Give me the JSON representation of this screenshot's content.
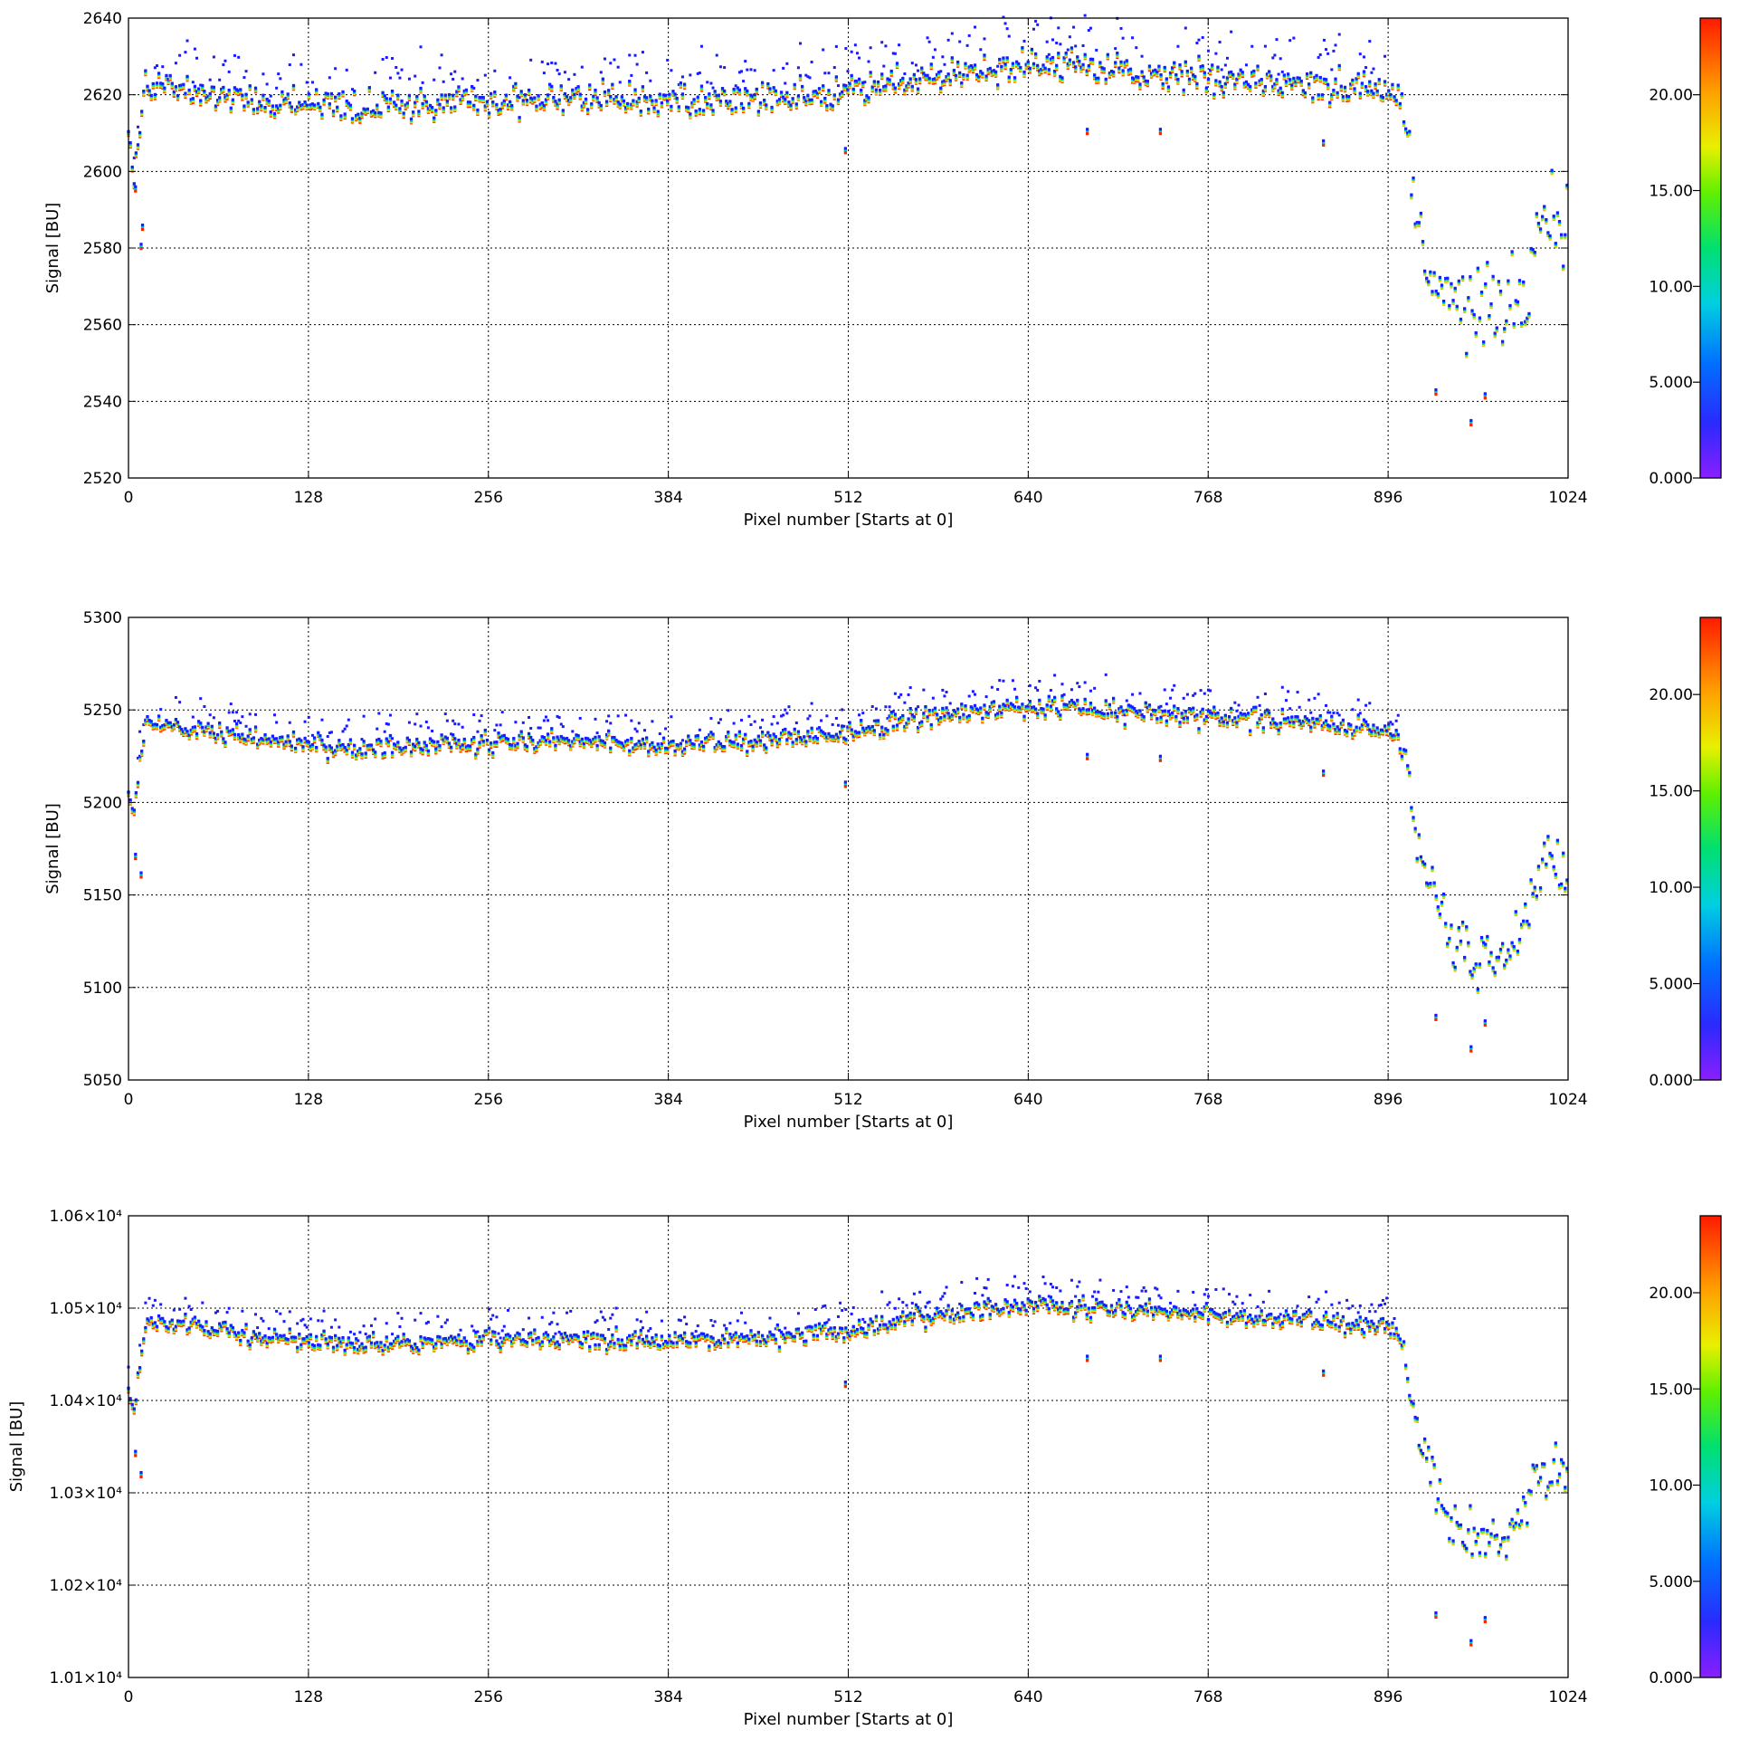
{
  "chart_data": [
    {
      "type": "scatter",
      "title": "",
      "xlabel": "Pixel number [Starts at 0]",
      "ylabel": "Signal [BU]",
      "xlim": [
        0,
        1024
      ],
      "ylim": [
        2520,
        2640
      ],
      "grid": true,
      "x_ticks": [
        "0",
        "128",
        "256",
        "384",
        "512",
        "640",
        "768",
        "896",
        "1024"
      ],
      "x_tick_values": [
        0,
        128,
        256,
        384,
        512,
        640,
        768,
        896,
        1024
      ],
      "y_ticks": [
        "2520",
        "2540",
        "2560",
        "2580",
        "2600",
        "2620",
        "2640"
      ],
      "y_tick_values": [
        2520,
        2540,
        2560,
        2580,
        2600,
        2620,
        2640
      ],
      "colorbar": {
        "range": [
          0,
          24
        ],
        "ticks": [
          "0.000",
          "5.000",
          "10.00",
          "15.00",
          "20.00"
        ],
        "tick_values": [
          0,
          5,
          10,
          15,
          20
        ],
        "colormap": "rainbow"
      },
      "baseline_profile": [
        [
          0,
          2610
        ],
        [
          4,
          2598
        ],
        [
          8,
          2612
        ],
        [
          12,
          2624
        ],
        [
          30,
          2622
        ],
        [
          64,
          2620
        ],
        [
          128,
          2618
        ],
        [
          160,
          2617
        ],
        [
          256,
          2619
        ],
        [
          320,
          2619
        ],
        [
          384,
          2619
        ],
        [
          448,
          2619
        ],
        [
          512,
          2621
        ],
        [
          560,
          2625
        ],
        [
          640,
          2628
        ],
        [
          704,
          2627
        ],
        [
          768,
          2625
        ],
        [
          832,
          2624
        ],
        [
          896,
          2622
        ],
        [
          905,
          2619
        ],
        [
          912,
          2604
        ],
        [
          918,
          2580
        ],
        [
          940,
          2568
        ],
        [
          960,
          2563
        ],
        [
          980,
          2566
        ],
        [
          995,
          2570
        ],
        [
          1005,
          2590
        ],
        [
          1024,
          2588
        ]
      ],
      "outliers": [
        [
          5,
          2596
        ],
        [
          9,
          2581
        ],
        [
          10,
          2586
        ],
        [
          510,
          2606
        ],
        [
          682,
          2611
        ],
        [
          734,
          2611
        ],
        [
          850,
          2608
        ]
      ],
      "lower_outliers": [
        [
          930,
          2543
        ],
        [
          955,
          2535
        ],
        [
          965,
          2542
        ]
      ],
      "spread_stable": 6,
      "spread_tail": 16
    },
    {
      "type": "scatter",
      "title": "",
      "xlabel": "Pixel number [Starts at 0]",
      "ylabel": "Signal [BU]",
      "xlim": [
        0,
        1024
      ],
      "ylim": [
        5050,
        5300
      ],
      "grid": true,
      "x_ticks": [
        "0",
        "128",
        "256",
        "384",
        "512",
        "640",
        "768",
        "896",
        "1024"
      ],
      "x_tick_values": [
        0,
        128,
        256,
        384,
        512,
        640,
        768,
        896,
        1024
      ],
      "y_ticks": [
        "5050",
        "5100",
        "5150",
        "5200",
        "5250",
        "5300"
      ],
      "y_tick_values": [
        5050,
        5100,
        5150,
        5200,
        5250,
        5300
      ],
      "colorbar": {
        "range": [
          0,
          24
        ],
        "ticks": [
          "0.000",
          "5.000",
          "10.00",
          "15.00",
          "20.00"
        ],
        "tick_values": [
          0,
          5,
          10,
          15,
          20
        ],
        "colormap": "rainbow"
      },
      "baseline_profile": [
        [
          0,
          5205
        ],
        [
          4,
          5196
        ],
        [
          8,
          5220
        ],
        [
          12,
          5245
        ],
        [
          30,
          5242
        ],
        [
          64,
          5238
        ],
        [
          128,
          5232
        ],
        [
          160,
          5230
        ],
        [
          256,
          5233
        ],
        [
          320,
          5234
        ],
        [
          384,
          5232
        ],
        [
          448,
          5234
        ],
        [
          512,
          5238
        ],
        [
          560,
          5246
        ],
        [
          640,
          5253
        ],
        [
          704,
          5250
        ],
        [
          768,
          5247
        ],
        [
          832,
          5245
        ],
        [
          896,
          5240
        ],
        [
          905,
          5235
        ],
        [
          912,
          5205
        ],
        [
          918,
          5175
        ],
        [
          940,
          5130
        ],
        [
          960,
          5115
        ],
        [
          980,
          5125
        ],
        [
          995,
          5140
        ],
        [
          1005,
          5165
        ],
        [
          1024,
          5160
        ]
      ],
      "outliers": [
        [
          5,
          5172
        ],
        [
          9,
          5162
        ],
        [
          510,
          5211
        ],
        [
          682,
          5226
        ],
        [
          734,
          5225
        ],
        [
          850,
          5217
        ]
      ],
      "lower_outliers": [
        [
          930,
          5085
        ],
        [
          955,
          5068
        ],
        [
          965,
          5082
        ]
      ],
      "spread_stable": 8,
      "spread_tail": 25
    },
    {
      "type": "scatter",
      "title": "",
      "xlabel": "Pixel number [Starts at 0]",
      "ylabel": "Signal [BU]",
      "xlim": [
        0,
        1024
      ],
      "ylim": [
        10100,
        10600
      ],
      "grid": true,
      "x_ticks": [
        "0",
        "128",
        "256",
        "384",
        "512",
        "640",
        "768",
        "896",
        "1024"
      ],
      "x_tick_values": [
        0,
        128,
        256,
        384,
        512,
        640,
        768,
        896,
        1024
      ],
      "y_ticks": [
        "1.01×10⁴",
        "1.02×10⁴",
        "1.03×10⁴",
        "1.04×10⁴",
        "1.05×10⁴",
        "1.06×10⁴"
      ],
      "y_tick_values": [
        10100,
        10200,
        10300,
        10400,
        10500,
        10600
      ],
      "colorbar": {
        "range": [
          0,
          24
        ],
        "ticks": [
          "0.000",
          "5.000",
          "10.00",
          "15.00",
          "20.00"
        ],
        "tick_values": [
          0,
          5,
          10,
          15,
          20
        ],
        "colormap": "rainbow"
      },
      "baseline_profile": [
        [
          0,
          10410
        ],
        [
          4,
          10392
        ],
        [
          8,
          10440
        ],
        [
          12,
          10490
        ],
        [
          30,
          10484
        ],
        [
          64,
          10478
        ],
        [
          128,
          10466
        ],
        [
          160,
          10462
        ],
        [
          256,
          10468
        ],
        [
          320,
          10470
        ],
        [
          384,
          10466
        ],
        [
          448,
          10470
        ],
        [
          512,
          10476
        ],
        [
          560,
          10492
        ],
        [
          640,
          10505
        ],
        [
          704,
          10500
        ],
        [
          768,
          10495
        ],
        [
          832,
          10490
        ],
        [
          896,
          10480
        ],
        [
          905,
          10470
        ],
        [
          912,
          10410
        ],
        [
          918,
          10355
        ],
        [
          940,
          10270
        ],
        [
          960,
          10245
        ],
        [
          980,
          10255
        ],
        [
          995,
          10290
        ],
        [
          1005,
          10330
        ],
        [
          1024,
          10320
        ]
      ],
      "outliers": [
        [
          5,
          10345
        ],
        [
          9,
          10322
        ],
        [
          510,
          10420
        ],
        [
          682,
          10448
        ],
        [
          734,
          10448
        ],
        [
          850,
          10432
        ]
      ],
      "lower_outliers": [
        [
          930,
          10170
        ],
        [
          955,
          10140
        ],
        [
          965,
          10165
        ]
      ],
      "spread_stable": 15,
      "spread_tail": 45
    }
  ]
}
